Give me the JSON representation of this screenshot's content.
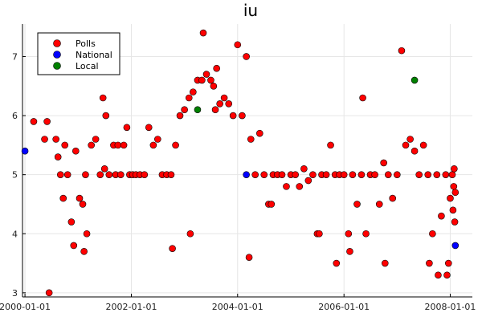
{
  "chart_data": {
    "type": "scatter",
    "title": "iu",
    "xlabel": "",
    "ylabel": "",
    "x_axis_type": "date",
    "xlim": [
      "1999-12-15",
      "2008-06-01"
    ],
    "ylim": [
      2.93,
      7.55
    ],
    "x_ticks": [
      "2000-01-01",
      "2002-01-01",
      "2004-01-01",
      "2006-01-01",
      "2008-01-01"
    ],
    "y_ticks": [
      3,
      4,
      5,
      6,
      7
    ],
    "grid": true,
    "legend_position": "top-left",
    "series": [
      {
        "name": "Polls",
        "color": "#ff0000",
        "points": [
          [
            "2000-03-01",
            5.9
          ],
          [
            "2000-05-15",
            5.6
          ],
          [
            "2000-06-01",
            5.9
          ],
          [
            "2000-08-01",
            5.6
          ],
          [
            "2000-08-15",
            5.3
          ],
          [
            "2000-09-01",
            5.0
          ],
          [
            "2000-09-20",
            4.6
          ],
          [
            "2000-10-01",
            5.5
          ],
          [
            "2000-10-20",
            5.0
          ],
          [
            "2000-11-15",
            4.2
          ],
          [
            "2000-12-15",
            5.4
          ],
          [
            "2001-01-10",
            4.6
          ],
          [
            "2001-02-01",
            4.5
          ],
          [
            "2001-02-20",
            5.0
          ],
          [
            "2001-03-01",
            4.0
          ],
          [
            "2001-04-01",
            5.5
          ],
          [
            "2001-05-01",
            5.6
          ],
          [
            "2001-06-01",
            5.0
          ],
          [
            "2001-07-01",
            5.1
          ],
          [
            "2001-08-01",
            5.0
          ],
          [
            "2001-09-01",
            5.5
          ],
          [
            "2001-09-15",
            5.0
          ],
          [
            "2001-10-01",
            5.5
          ],
          [
            "2001-10-20",
            5.0
          ],
          [
            "2001-11-10",
            5.5
          ],
          [
            "2001-12-01",
            5.8
          ],
          [
            "2001-12-20",
            5.0
          ],
          [
            "2002-01-10",
            5.0
          ],
          [
            "2002-02-01",
            5.0
          ],
          [
            "2002-03-01",
            5.0
          ],
          [
            "2002-04-01",
            5.0
          ],
          [
            "2002-05-01",
            5.8
          ],
          [
            "2002-06-01",
            5.5
          ],
          [
            "2002-07-01",
            5.6
          ],
          [
            "2002-08-01",
            5.0
          ],
          [
            "2002-09-01",
            5.0
          ],
          [
            "2002-10-01",
            5.0
          ],
          [
            "2002-11-01",
            5.5
          ],
          [
            "2002-12-01",
            6.0
          ],
          [
            "2003-01-01",
            6.1
          ],
          [
            "2003-02-01",
            6.3
          ],
          [
            "2003-03-01",
            6.4
          ],
          [
            "2003-04-01",
            6.6
          ],
          [
            "2003-05-01",
            6.6
          ],
          [
            "2003-06-01",
            6.7
          ],
          [
            "2003-07-01",
            6.6
          ],
          [
            "2003-08-01",
            6.1
          ],
          [
            "2003-09-01",
            6.2
          ],
          [
            "2003-10-01",
            6.3
          ],
          [
            "2003-11-01",
            6.2
          ],
          [
            "2003-12-01",
            6.0
          ],
          [
            "2004-01-01",
            7.2
          ],
          [
            "2004-02-01",
            6.0
          ],
          [
            "2004-03-01",
            7.0
          ],
          [
            "2004-04-01",
            5.6
          ],
          [
            "2004-05-01",
            5.0
          ],
          [
            "2004-06-01",
            5.7
          ],
          [
            "2004-07-01",
            5.0
          ],
          [
            "2004-08-01",
            4.5
          ],
          [
            "2004-09-01",
            5.0
          ],
          [
            "2004-10-01",
            5.0
          ],
          [
            "2004-11-01",
            5.0
          ],
          [
            "2004-12-01",
            4.8
          ],
          [
            "2005-01-01",
            5.0
          ],
          [
            "2005-02-01",
            5.0
          ],
          [
            "2005-03-01",
            4.8
          ],
          [
            "2005-04-01",
            5.1
          ],
          [
            "2005-05-01",
            4.9
          ],
          [
            "2005-06-01",
            5.0
          ],
          [
            "2005-07-01",
            4.0
          ],
          [
            "2005-08-01",
            5.0
          ],
          [
            "2005-09-01",
            5.0
          ],
          [
            "2005-10-01",
            5.5
          ],
          [
            "2005-11-01",
            5.0
          ],
          [
            "2005-12-01",
            5.0
          ],
          [
            "2006-01-01",
            5.0
          ],
          [
            "2006-02-01",
            4.0
          ],
          [
            "2006-03-01",
            5.0
          ],
          [
            "2006-04-01",
            4.5
          ],
          [
            "2006-05-01",
            5.0
          ],
          [
            "2006-06-01",
            4.0
          ],
          [
            "2006-07-01",
            5.0
          ],
          [
            "2006-08-01",
            5.0
          ],
          [
            "2006-09-01",
            4.5
          ],
          [
            "2006-10-01",
            5.2
          ],
          [
            "2006-11-01",
            5.0
          ],
          [
            "2006-12-01",
            4.6
          ],
          [
            "2007-01-01",
            5.0
          ],
          [
            "2007-02-01",
            7.1
          ],
          [
            "2007-03-01",
            5.5
          ],
          [
            "2007-04-01",
            5.6
          ],
          [
            "2007-05-01",
            5.4
          ],
          [
            "2007-06-01",
            5.0
          ],
          [
            "2007-07-01",
            5.5
          ],
          [
            "2007-08-01",
            5.0
          ],
          [
            "2007-09-01",
            4.0
          ],
          [
            "2007-10-01",
            5.0
          ],
          [
            "2007-11-01",
            4.3
          ],
          [
            "2007-12-01",
            5.0
          ],
          [
            "2008-01-01",
            4.6
          ],
          [
            "2008-01-15",
            5.0
          ],
          [
            "2008-02-01",
            4.2
          ],
          [
            "2000-06-15",
            3.0
          ],
          [
            "2000-12-01",
            3.8
          ],
          [
            "2001-02-10",
            3.7
          ],
          [
            "2001-06-20",
            6.3
          ],
          [
            "2001-07-10",
            6.0
          ],
          [
            "2002-10-10",
            3.75
          ],
          [
            "2003-02-10",
            4.0
          ],
          [
            "2003-05-10",
            7.4
          ],
          [
            "2003-07-20",
            6.5
          ],
          [
            "2003-08-10",
            6.8
          ],
          [
            "2004-03-20",
            3.6
          ],
          [
            "2004-08-20",
            4.5
          ],
          [
            "2005-07-15",
            4.0
          ],
          [
            "2005-11-10",
            3.5
          ],
          [
            "2006-02-10",
            3.7
          ],
          [
            "2006-05-10",
            6.3
          ],
          [
            "2006-10-10",
            3.5
          ],
          [
            "2007-08-10",
            3.5
          ],
          [
            "2007-10-10",
            3.3
          ],
          [
            "2007-12-20",
            3.5
          ],
          [
            "2007-12-10",
            3.3
          ],
          [
            "2008-01-20",
            4.4
          ],
          [
            "2008-01-25",
            4.8
          ],
          [
            "2008-01-28",
            5.1
          ],
          [
            "2008-02-05",
            4.7
          ]
        ]
      },
      {
        "name": "National",
        "color": "#0000ff",
        "points": [
          [
            "2000-01-01",
            5.4
          ],
          [
            "2004-03-01",
            5.0
          ],
          [
            "2008-02-05",
            3.8
          ]
        ]
      },
      {
        "name": "Local",
        "color": "#008000",
        "points": [
          [
            "2003-04-01",
            6.1
          ],
          [
            "2007-05-01",
            6.6
          ]
        ]
      }
    ]
  }
}
